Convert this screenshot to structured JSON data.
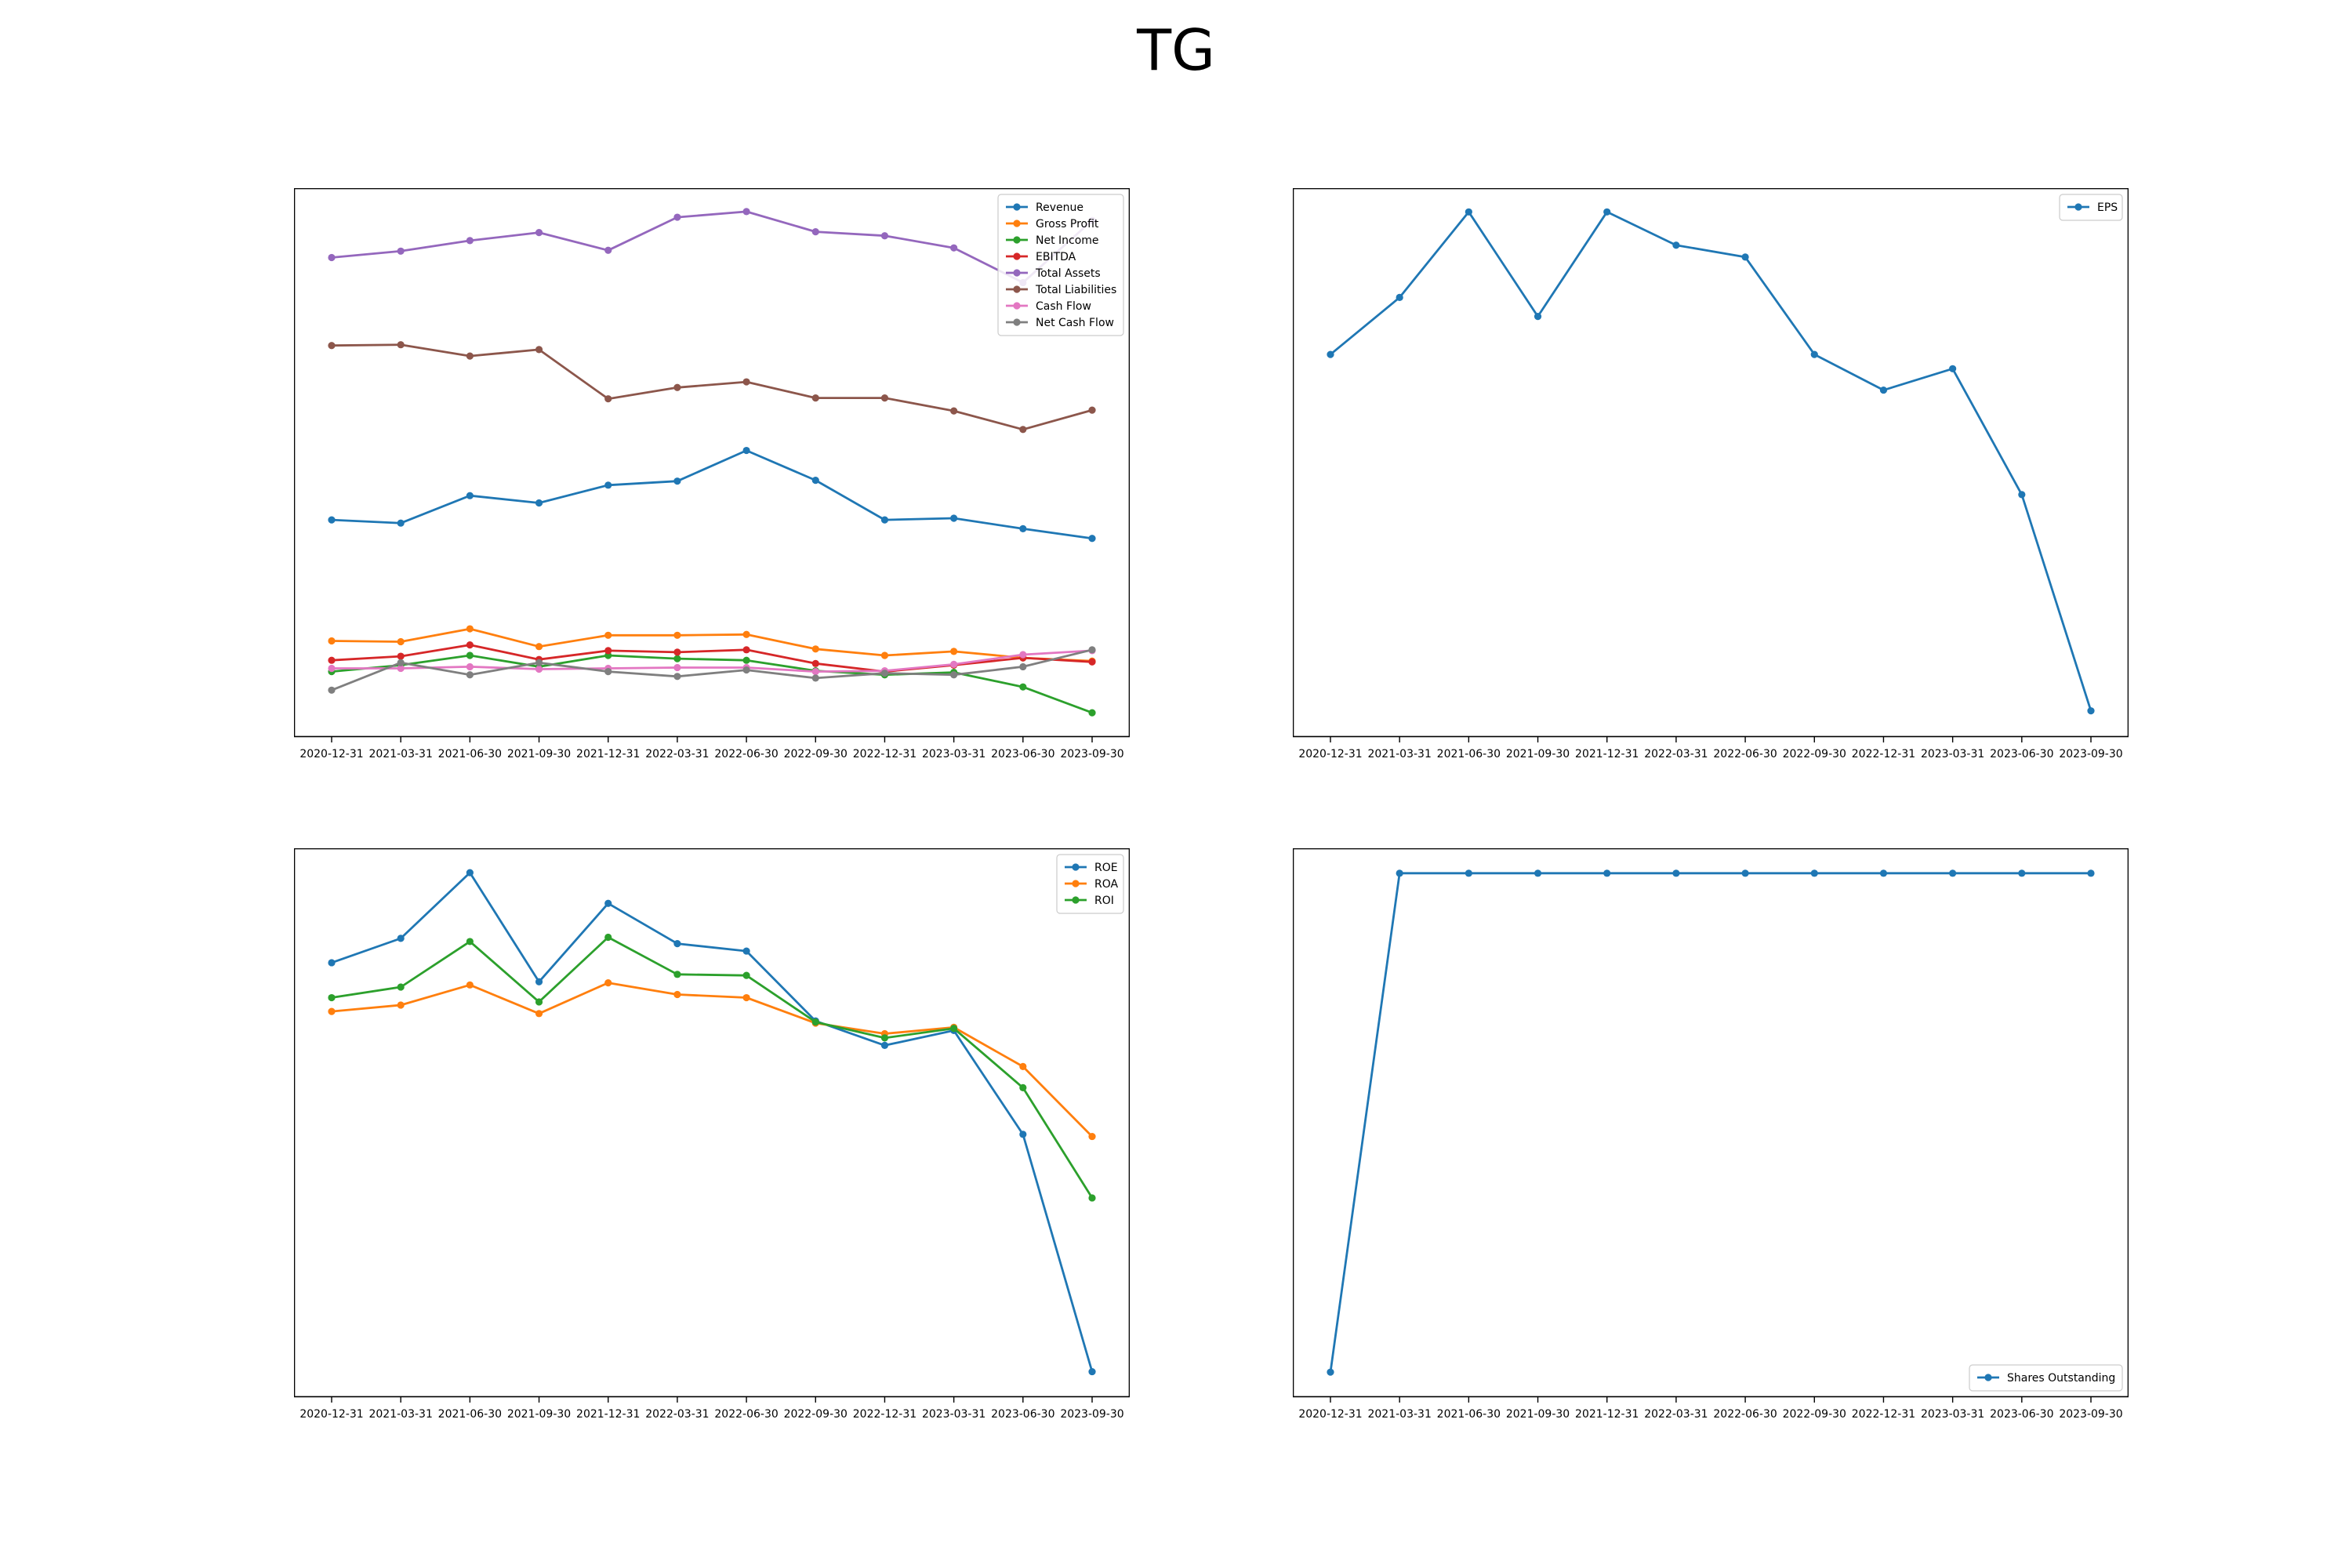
{
  "page": {
    "title": "TG"
  },
  "colors": {
    "blue": "#1f77b4",
    "orange": "#ff7f0e",
    "green": "#2ca02c",
    "red": "#d62728",
    "purple": "#9467bd",
    "brown": "#8c564b",
    "pink": "#e377c2",
    "gray": "#7f7f7f"
  },
  "chart_data": [
    {
      "id": "financials",
      "type": "line",
      "title": "",
      "xlabel": "",
      "ylabel": "",
      "x": [
        "2020-12-31",
        "2021-03-31",
        "2021-06-30",
        "2021-09-30",
        "2021-12-31",
        "2022-03-31",
        "2022-06-30",
        "2022-09-30",
        "2022-12-31",
        "2023-03-31",
        "2023-06-30",
        "2023-09-30"
      ],
      "ylim": [
        -80,
        600
      ],
      "yticks": [
        "600",
        "500",
        "400",
        "300",
        "200",
        "100",
        "0"
      ],
      "legend": "top-right",
      "series": [
        {
          "name": "Revenue",
          "color": "#1f77b4",
          "values": [
            189,
            185,
            219,
            210,
            232,
            237,
            275,
            238,
            189,
            191,
            178,
            166
          ]
        },
        {
          "name": "Gross Profit",
          "color": "#ff7f0e",
          "values": [
            39,
            38,
            54,
            32,
            46,
            46,
            47,
            29,
            21,
            26,
            18,
            14
          ]
        },
        {
          "name": "Net Income",
          "color": "#2ca02c",
          "values": [
            1,
            9,
            21,
            7,
            21,
            17,
            15,
            2,
            -3,
            0,
            -18,
            -50
          ]
        },
        {
          "name": "EBITDA",
          "color": "#d62728",
          "values": [
            15,
            20,
            34,
            16,
            27,
            25,
            28,
            11,
            1,
            9,
            18,
            13
          ]
        },
        {
          "name": "Total Assets",
          "color": "#9467bd",
          "values": [
            514,
            522,
            535,
            545,
            523,
            564,
            571,
            546,
            541,
            526,
            483,
            560
          ]
        },
        {
          "name": "Total Liabilities",
          "color": "#8c564b",
          "values": [
            405,
            406,
            392,
            400,
            339,
            353,
            360,
            340,
            340,
            324,
            301,
            325
          ]
        },
        {
          "name": "Cash Flow",
          "color": "#e377c2",
          "values": [
            5,
            5,
            7,
            4,
            5,
            6,
            6,
            1,
            2,
            10,
            22,
            27
          ]
        },
        {
          "name": "Net Cash Flow",
          "color": "#7f7f7f",
          "values": [
            -22,
            12,
            -3,
            12,
            1,
            -5,
            3,
            -7,
            -1,
            -3,
            7,
            28
          ]
        }
      ]
    },
    {
      "id": "eps",
      "type": "line",
      "title": "",
      "xlabel": "",
      "ylabel": "",
      "x": [
        "2020-12-31",
        "2021-03-31",
        "2021-06-30",
        "2021-09-30",
        "2021-12-31",
        "2022-03-31",
        "2022-06-30",
        "2022-09-30",
        "2022-12-31",
        "2023-03-31",
        "2023-06-30",
        "2023-09-30"
      ],
      "ylim": [
        -1.58,
        0.73
      ],
      "yticks": [
        "0.5",
        "0.0",
        "−0.5",
        "−1.0",
        "−1.5"
      ],
      "legend": "top-right",
      "series": [
        {
          "name": "EPS",
          "color": "#1f77b4",
          "values": [
            0.03,
            0.27,
            0.63,
            0.19,
            0.63,
            0.49,
            0.44,
            0.03,
            -0.12,
            -0.03,
            -0.56,
            -1.47
          ]
        }
      ]
    },
    {
      "id": "returns",
      "type": "line",
      "title": "",
      "xlabel": "",
      "ylabel": "",
      "x": [
        "2020-12-31",
        "2021-03-31",
        "2021-06-30",
        "2021-09-30",
        "2021-12-31",
        "2022-03-31",
        "2022-06-30",
        "2022-09-30",
        "2022-12-31",
        "2023-03-31",
        "2023-06-30",
        "2023-09-30"
      ],
      "ylim": [
        -35,
        16.8
      ],
      "yticks": [
        "10",
        "0",
        "−10",
        "−20",
        "−30"
      ],
      "legend": "top-right",
      "series": [
        {
          "name": "ROE",
          "color": "#1f77b4",
          "values": [
            6.0,
            8.3,
            14.5,
            4.2,
            11.6,
            7.8,
            7.1,
            0.5,
            -1.8,
            -0.4,
            -10.2,
            -32.6
          ]
        },
        {
          "name": "ROA",
          "color": "#ff7f0e",
          "values": [
            1.4,
            2.0,
            3.9,
            1.2,
            4.1,
            3.0,
            2.7,
            0.3,
            -0.7,
            -0.1,
            -3.8,
            -10.4
          ]
        },
        {
          "name": "ROI",
          "color": "#2ca02c",
          "values": [
            2.7,
            3.7,
            8.0,
            2.3,
            8.4,
            4.9,
            4.8,
            0.4,
            -1.1,
            -0.2,
            -5.8,
            -16.2
          ]
        }
      ]
    },
    {
      "id": "shares",
      "type": "line",
      "title": "",
      "xlabel": "",
      "ylabel": "",
      "x": [
        "2020-12-31",
        "2021-03-31",
        "2021-06-30",
        "2021-09-30",
        "2021-12-31",
        "2022-03-31",
        "2022-06-30",
        "2022-09-30",
        "2022-12-31",
        "2023-03-31",
        "2023-06-30",
        "2023-09-30"
      ],
      "ylim": [
        32.95,
        34.05
      ],
      "yticks": [
        "34.0",
        "33.8",
        "33.6",
        "33.4",
        "33.2",
        "33.0"
      ],
      "legend": "bottom-right",
      "series": [
        {
          "name": "Shares Outstanding",
          "color": "#1f77b4",
          "values": [
            33.0,
            34.0,
            34.0,
            34.0,
            34.0,
            34.0,
            34.0,
            34.0,
            34.0,
            34.0,
            34.0,
            34.0
          ]
        }
      ]
    }
  ]
}
